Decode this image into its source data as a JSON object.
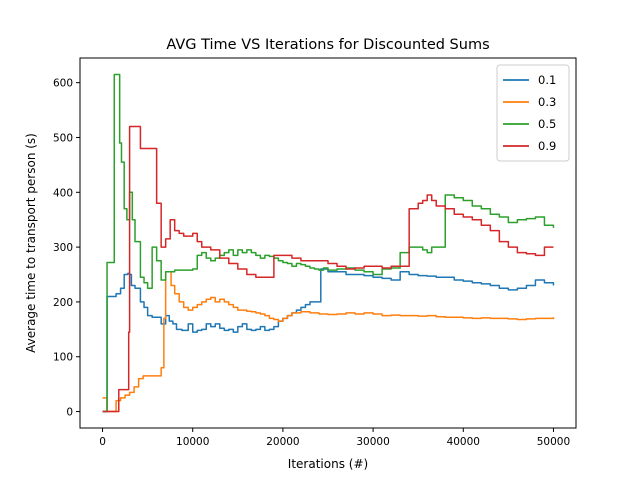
{
  "chart_data": {
    "type": "line",
    "title": "AVG Time VS Iterations for Discounted Sums",
    "xlabel": "Iterations (#)",
    "ylabel": "Average time to transport person (s)",
    "xlim": [
      -2500,
      52500
    ],
    "ylim": [
      -30,
      645
    ],
    "xticks": [
      0,
      10000,
      20000,
      30000,
      40000,
      50000
    ],
    "xtick_labels": [
      "0",
      "10000",
      "20000",
      "30000",
      "40000",
      "50000"
    ],
    "yticks": [
      0,
      100,
      200,
      300,
      400,
      500,
      600
    ],
    "ytick_labels": [
      "0",
      "100",
      "200",
      "300",
      "400",
      "500",
      "600"
    ],
    "grid": false,
    "legend_position": "top-right",
    "series": [
      {
        "name": "0.1",
        "color": "#1f77b4",
        "points": [
          [
            0,
            0
          ],
          [
            300,
            0
          ],
          [
            500,
            210
          ],
          [
            1000,
            210
          ],
          [
            1500,
            215
          ],
          [
            2000,
            225
          ],
          [
            2400,
            250
          ],
          [
            2800,
            252
          ],
          [
            3000,
            250
          ],
          [
            3200,
            230
          ],
          [
            3600,
            225
          ],
          [
            3800,
            225
          ],
          [
            4200,
            200
          ],
          [
            4600,
            190
          ],
          [
            5000,
            175
          ],
          [
            5500,
            172
          ],
          [
            6000,
            172
          ],
          [
            6500,
            160
          ],
          [
            7000,
            175
          ],
          [
            7400,
            165
          ],
          [
            7800,
            160
          ],
          [
            8200,
            150
          ],
          [
            8800,
            148
          ],
          [
            9500,
            160
          ],
          [
            10000,
            145
          ],
          [
            10500,
            148
          ],
          [
            11000,
            150
          ],
          [
            11500,
            160
          ],
          [
            12000,
            155
          ],
          [
            12500,
            160
          ],
          [
            13000,
            152
          ],
          [
            13500,
            148
          ],
          [
            14000,
            150
          ],
          [
            14500,
            145
          ],
          [
            15000,
            155
          ],
          [
            15500,
            160
          ],
          [
            16000,
            150
          ],
          [
            16500,
            148
          ],
          [
            17000,
            150
          ],
          [
            17500,
            155
          ],
          [
            18000,
            148
          ],
          [
            18500,
            150
          ],
          [
            19000,
            155
          ],
          [
            19500,
            165
          ],
          [
            20000,
            170
          ],
          [
            20500,
            175
          ],
          [
            21000,
            180
          ],
          [
            21500,
            185
          ],
          [
            22000,
            190
          ],
          [
            22500,
            195
          ],
          [
            23000,
            200
          ],
          [
            24000,
            200
          ],
          [
            24200,
            260
          ],
          [
            25000,
            255
          ],
          [
            26000,
            255
          ],
          [
            27000,
            250
          ],
          [
            28000,
            250
          ],
          [
            29000,
            248
          ],
          [
            30000,
            245
          ],
          [
            31000,
            243
          ],
          [
            32000,
            240
          ],
          [
            33000,
            255
          ],
          [
            34000,
            250
          ],
          [
            35000,
            248
          ],
          [
            36000,
            247
          ],
          [
            37000,
            245
          ],
          [
            38000,
            245
          ],
          [
            39000,
            240
          ],
          [
            40000,
            238
          ],
          [
            41000,
            235
          ],
          [
            42000,
            233
          ],
          [
            43000,
            230
          ],
          [
            44000,
            225
          ],
          [
            45000,
            222
          ],
          [
            46000,
            225
          ],
          [
            47000,
            230
          ],
          [
            48000,
            240
          ],
          [
            49000,
            235
          ],
          [
            50000,
            230
          ]
        ]
      },
      {
        "name": "0.3",
        "color": "#ff7f0e",
        "points": [
          [
            0,
            25
          ],
          [
            300,
            25
          ],
          [
            500,
            0
          ],
          [
            1200,
            0
          ],
          [
            1500,
            20
          ],
          [
            2000,
            25
          ],
          [
            2500,
            30
          ],
          [
            3000,
            35
          ],
          [
            3500,
            45
          ],
          [
            4000,
            60
          ],
          [
            4500,
            65
          ],
          [
            5000,
            65
          ],
          [
            6000,
            65
          ],
          [
            6500,
            80
          ],
          [
            6800,
            170
          ],
          [
            7000,
            255
          ],
          [
            7300,
            255
          ],
          [
            7600,
            230
          ],
          [
            8000,
            215
          ],
          [
            8500,
            200
          ],
          [
            9000,
            190
          ],
          [
            9500,
            185
          ],
          [
            10000,
            190
          ],
          [
            10500,
            195
          ],
          [
            11000,
            200
          ],
          [
            11500,
            205
          ],
          [
            12000,
            208
          ],
          [
            12500,
            200
          ],
          [
            13000,
            205
          ],
          [
            13500,
            200
          ],
          [
            14000,
            195
          ],
          [
            14500,
            190
          ],
          [
            15000,
            185
          ],
          [
            15500,
            185
          ],
          [
            16000,
            183
          ],
          [
            16500,
            182
          ],
          [
            17000,
            180
          ],
          [
            17500,
            178
          ],
          [
            18000,
            175
          ],
          [
            18500,
            170
          ],
          [
            19000,
            168
          ],
          [
            19500,
            165
          ],
          [
            20000,
            170
          ],
          [
            20500,
            175
          ],
          [
            21000,
            180
          ],
          [
            22000,
            182
          ],
          [
            23000,
            180
          ],
          [
            24000,
            178
          ],
          [
            25000,
            177
          ],
          [
            26000,
            178
          ],
          [
            27000,
            180
          ],
          [
            28000,
            178
          ],
          [
            29000,
            180
          ],
          [
            30000,
            178
          ],
          [
            31000,
            175
          ],
          [
            32000,
            176
          ],
          [
            33000,
            175
          ],
          [
            34000,
            175
          ],
          [
            35000,
            174
          ],
          [
            36000,
            175
          ],
          [
            37000,
            173
          ],
          [
            38000,
            172
          ],
          [
            39000,
            172
          ],
          [
            40000,
            171
          ],
          [
            41000,
            170
          ],
          [
            42000,
            171
          ],
          [
            43000,
            170
          ],
          [
            44000,
            170
          ],
          [
            45000,
            169
          ],
          [
            46000,
            168
          ],
          [
            47000,
            169
          ],
          [
            48000,
            170
          ],
          [
            49000,
            170
          ],
          [
            50000,
            172
          ]
        ]
      },
      {
        "name": "0.5",
        "color": "#2ca02c",
        "points": [
          [
            0,
            0
          ],
          [
            300,
            0
          ],
          [
            500,
            272
          ],
          [
            1000,
            272
          ],
          [
            1300,
            615
          ],
          [
            1700,
            615
          ],
          [
            1900,
            490
          ],
          [
            2100,
            455
          ],
          [
            2400,
            370
          ],
          [
            2700,
            350
          ],
          [
            3000,
            400
          ],
          [
            3300,
            350
          ],
          [
            3600,
            310
          ],
          [
            3900,
            310
          ],
          [
            4200,
            245
          ],
          [
            4600,
            235
          ],
          [
            5000,
            225
          ],
          [
            5500,
            300
          ],
          [
            6000,
            275
          ],
          [
            6500,
            240
          ],
          [
            7000,
            255
          ],
          [
            8000,
            258
          ],
          [
            9000,
            258
          ],
          [
            10000,
            260
          ],
          [
            10500,
            285
          ],
          [
            11000,
            290
          ],
          [
            11500,
            280
          ],
          [
            12000,
            275
          ],
          [
            12500,
            280
          ],
          [
            13000,
            285
          ],
          [
            13500,
            290
          ],
          [
            14000,
            295
          ],
          [
            14500,
            285
          ],
          [
            15000,
            295
          ],
          [
            15500,
            290
          ],
          [
            16000,
            295
          ],
          [
            16500,
            290
          ],
          [
            17000,
            285
          ],
          [
            17500,
            280
          ],
          [
            18000,
            285
          ],
          [
            18500,
            283
          ],
          [
            19000,
            280
          ],
          [
            19500,
            275
          ],
          [
            20000,
            272
          ],
          [
            20500,
            270
          ],
          [
            21000,
            265
          ],
          [
            21500,
            270
          ],
          [
            22000,
            268
          ],
          [
            22500,
            265
          ],
          [
            23000,
            262
          ],
          [
            23500,
            260
          ],
          [
            24000,
            258
          ],
          [
            24500,
            262
          ],
          [
            25000,
            258
          ],
          [
            26000,
            260
          ],
          [
            27000,
            262
          ],
          [
            28000,
            258
          ],
          [
            29000,
            255
          ],
          [
            30000,
            250
          ],
          [
            31000,
            260
          ],
          [
            32000,
            262
          ],
          [
            33000,
            290
          ],
          [
            34000,
            300
          ],
          [
            35000,
            300
          ],
          [
            35500,
            295
          ],
          [
            36000,
            290
          ],
          [
            36500,
            300
          ],
          [
            37000,
            300
          ],
          [
            38000,
            395
          ],
          [
            39000,
            390
          ],
          [
            40000,
            385
          ],
          [
            41000,
            375
          ],
          [
            42000,
            370
          ],
          [
            43000,
            360
          ],
          [
            44000,
            355
          ],
          [
            45000,
            345
          ],
          [
            46000,
            350
          ],
          [
            47000,
            352
          ],
          [
            48000,
            355
          ],
          [
            49000,
            340
          ],
          [
            50000,
            335
          ]
        ]
      },
      {
        "name": "0.9",
        "color": "#d62728",
        "points": [
          [
            0,
            0
          ],
          [
            1500,
            0
          ],
          [
            1800,
            40
          ],
          [
            2200,
            40
          ],
          [
            2700,
            40
          ],
          [
            2900,
            145
          ],
          [
            3000,
            520
          ],
          [
            4000,
            520
          ],
          [
            4200,
            480
          ],
          [
            5000,
            480
          ],
          [
            5800,
            480
          ],
          [
            6000,
            380
          ],
          [
            6500,
            300
          ],
          [
            7000,
            315
          ],
          [
            7500,
            350
          ],
          [
            8000,
            330
          ],
          [
            8500,
            325
          ],
          [
            9000,
            320
          ],
          [
            9500,
            320
          ],
          [
            10000,
            325
          ],
          [
            10500,
            310
          ],
          [
            11000,
            300
          ],
          [
            12000,
            295
          ],
          [
            13000,
            280
          ],
          [
            14000,
            270
          ],
          [
            15000,
            260
          ],
          [
            16000,
            250
          ],
          [
            17000,
            245
          ],
          [
            18000,
            245
          ],
          [
            19000,
            285
          ],
          [
            20000,
            285
          ],
          [
            21000,
            280
          ],
          [
            22000,
            275
          ],
          [
            23000,
            275
          ],
          [
            24000,
            275
          ],
          [
            25000,
            270
          ],
          [
            26000,
            265
          ],
          [
            27000,
            260
          ],
          [
            28000,
            262
          ],
          [
            29000,
            265
          ],
          [
            30000,
            265
          ],
          [
            31000,
            262
          ],
          [
            32000,
            265
          ],
          [
            33000,
            265
          ],
          [
            34000,
            370
          ],
          [
            34500,
            370
          ],
          [
            35000,
            380
          ],
          [
            35500,
            385
          ],
          [
            36000,
            395
          ],
          [
            36500,
            385
          ],
          [
            37000,
            375
          ],
          [
            38000,
            370
          ],
          [
            39000,
            360
          ],
          [
            40000,
            355
          ],
          [
            41000,
            350
          ],
          [
            42000,
            340
          ],
          [
            43000,
            330
          ],
          [
            44000,
            310
          ],
          [
            45000,
            300
          ],
          [
            46000,
            290
          ],
          [
            47000,
            288
          ],
          [
            48000,
            285
          ],
          [
            49000,
            300
          ],
          [
            50000,
            300
          ]
        ]
      }
    ]
  }
}
